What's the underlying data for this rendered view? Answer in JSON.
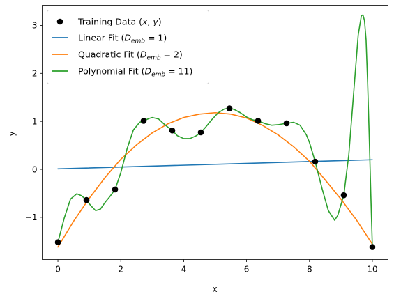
{
  "chart_data": {
    "type": "line",
    "title": "",
    "xlabel": "x",
    "ylabel": "y",
    "xlim": [
      -0.5,
      10.5
    ],
    "ylim": [
      -1.88,
      3.42
    ],
    "xticks": [
      0,
      2,
      4,
      6,
      8,
      10
    ],
    "yticks": [
      -1,
      0,
      1,
      2,
      3
    ],
    "ytick_labels": [
      "−1",
      "0",
      "1",
      "2",
      "3"
    ],
    "grid": false,
    "legend_position": "top-left",
    "training_data": {
      "name": "Training Data (x, y)",
      "color": "#000000",
      "x": [
        0,
        0.909,
        1.818,
        2.727,
        3.636,
        4.545,
        5.455,
        6.364,
        7.273,
        8.182,
        9.091,
        10
      ],
      "y": [
        -1.52,
        -0.64,
        -0.42,
        1.01,
        0.81,
        0.77,
        1.27,
        1.01,
        0.96,
        0.16,
        -0.54,
        -1.62
      ]
    },
    "series": [
      {
        "name": "Linear Fit (D_emb = 1)",
        "label_prefix": "Linear Fit (",
        "label_suffix": "1)",
        "color": "#1f77b4",
        "x": [
          0,
          10
        ],
        "y": [
          0.01,
          0.2
        ]
      },
      {
        "name": "Quadratic Fit (D_emb = 2)",
        "label_prefix": "Quadratic Fit (",
        "label_suffix": "2)",
        "color": "#ff7f0e",
        "x": [
          0,
          0.5,
          1,
          1.5,
          2,
          2.5,
          3,
          3.5,
          4,
          4.5,
          5,
          5.5,
          6,
          6.5,
          7,
          7.5,
          8,
          8.5,
          9,
          9.5,
          10
        ],
        "y": [
          -1.62,
          -1.08,
          -0.6,
          -0.17,
          0.21,
          0.51,
          0.76,
          0.95,
          1.08,
          1.15,
          1.18,
          1.15,
          1.07,
          0.92,
          0.72,
          0.47,
          0.17,
          -0.22,
          -0.62,
          -1.06,
          -1.56
        ]
      },
      {
        "name": "Polynomial Fit (D_emb = 11)",
        "label_prefix": "Polynomial Fit (",
        "label_suffix": "11)",
        "color": "#2ca02c",
        "x": [
          0,
          0.2,
          0.4,
          0.6,
          0.75,
          0.909,
          1.05,
          1.2,
          1.35,
          1.5,
          1.65,
          1.818,
          2.0,
          2.2,
          2.4,
          2.6,
          2.727,
          2.9,
          3.0,
          3.2,
          3.4,
          3.636,
          3.8,
          4.0,
          4.2,
          4.4,
          4.545,
          4.7,
          4.9,
          5.1,
          5.3,
          5.455,
          5.6,
          5.8,
          6.0,
          6.2,
          6.364,
          6.6,
          6.8,
          7.0,
          7.273,
          7.5,
          7.7,
          7.9,
          8.0,
          8.182,
          8.4,
          8.6,
          8.8,
          8.9,
          9.091,
          9.25,
          9.4,
          9.55,
          9.65,
          9.7,
          9.75,
          9.8,
          9.85,
          9.9,
          9.95,
          10.0
        ],
        "y": [
          -1.52,
          -1.02,
          -0.62,
          -0.51,
          -0.55,
          -0.64,
          -0.76,
          -0.86,
          -0.83,
          -0.69,
          -0.57,
          -0.42,
          -0.07,
          0.43,
          0.82,
          0.98,
          1.01,
          1.06,
          1.08,
          1.05,
          0.93,
          0.81,
          0.7,
          0.64,
          0.64,
          0.7,
          0.77,
          0.88,
          1.04,
          1.18,
          1.26,
          1.27,
          1.25,
          1.18,
          1.09,
          1.03,
          1.01,
          0.95,
          0.92,
          0.93,
          0.96,
          0.98,
          0.92,
          0.72,
          0.56,
          0.16,
          -0.4,
          -0.86,
          -1.06,
          -0.96,
          -0.54,
          0.3,
          1.55,
          2.8,
          3.2,
          3.22,
          3.1,
          2.7,
          1.8,
          0.7,
          -0.5,
          -1.62
        ]
      }
    ],
    "legend_math": {
      "var": "D",
      "sub": "emb",
      "eq": " = "
    },
    "legend_training_prefix": "Training Data (",
    "legend_training_x": "x",
    "legend_training_sep": ", ",
    "legend_training_y": "y",
    "legend_training_suffix": ")"
  }
}
